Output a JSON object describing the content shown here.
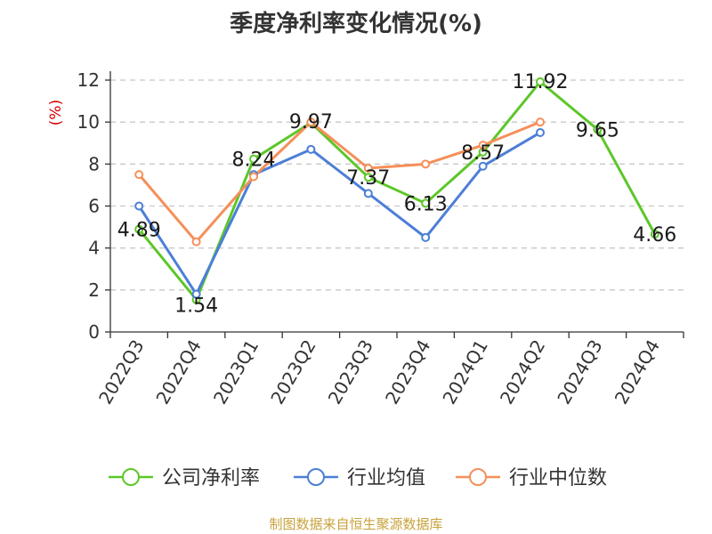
{
  "chart_data": {
    "type": "line",
    "title": "季度净利率变化情况(%)",
    "ylabel": "(%)",
    "ylim": [
      0,
      12
    ],
    "yticks": [
      0,
      2,
      4,
      6,
      8,
      10,
      12
    ],
    "grid": true,
    "legend_position": "bottom",
    "categories": [
      "2022Q3",
      "2022Q4",
      "2023Q1",
      "2023Q2",
      "2023Q3",
      "2023Q4",
      "2024Q1",
      "2024Q2",
      "2024Q3",
      "2024Q4"
    ],
    "series": [
      {
        "name": "公司净利率",
        "color": "#5cc728",
        "values": [
          4.89,
          1.54,
          8.24,
          9.97,
          7.37,
          6.13,
          8.57,
          11.92,
          9.65,
          4.66
        ],
        "labels": [
          "4.89",
          "1.54",
          "8.24",
          "9.97",
          "7.37",
          "6.13",
          "8.57",
          "11.92",
          "9.65",
          "4.66"
        ]
      },
      {
        "name": "行业均值",
        "color": "#4c7fd6",
        "values": [
          6.0,
          1.8,
          7.5,
          8.7,
          6.6,
          4.5,
          7.9,
          9.5,
          null,
          null
        ]
      },
      {
        "name": "行业中位数",
        "color": "#f58f5a",
        "values": [
          7.5,
          4.3,
          7.4,
          10.0,
          7.8,
          8.0,
          8.9,
          10.0,
          null,
          null
        ]
      }
    ]
  },
  "footer": {
    "source": "制图数据来自恒生聚源数据库"
  }
}
